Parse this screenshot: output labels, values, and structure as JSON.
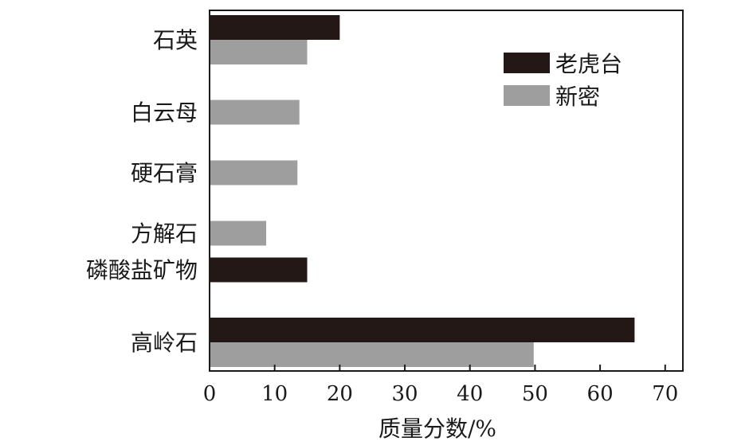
{
  "chart_data": {
    "type": "bar",
    "orientation": "horizontal",
    "xlabel": "质量分数/%",
    "xlim": [
      0,
      70
    ],
    "xticks": [
      0,
      10,
      20,
      30,
      40,
      50,
      60,
      70
    ],
    "xtick_labels": [
      "0",
      "10",
      "20",
      "30",
      "40",
      "50",
      "60",
      "70"
    ],
    "categories": [
      "石英",
      "白云母",
      "硬石膏",
      "方解石",
      "磷酸盐矿物",
      "高岭石"
    ],
    "series": [
      {
        "name": "老虎台",
        "color": "#231815",
        "values": [
          20,
          null,
          null,
          null,
          15,
          65.3
        ]
      },
      {
        "name": "新密",
        "color": "#9e9e9e",
        "values": [
          15,
          13.8,
          13.5,
          8.7,
          null,
          49.8
        ]
      }
    ],
    "legend": {
      "position": "top-right"
    },
    "grid": false
  }
}
